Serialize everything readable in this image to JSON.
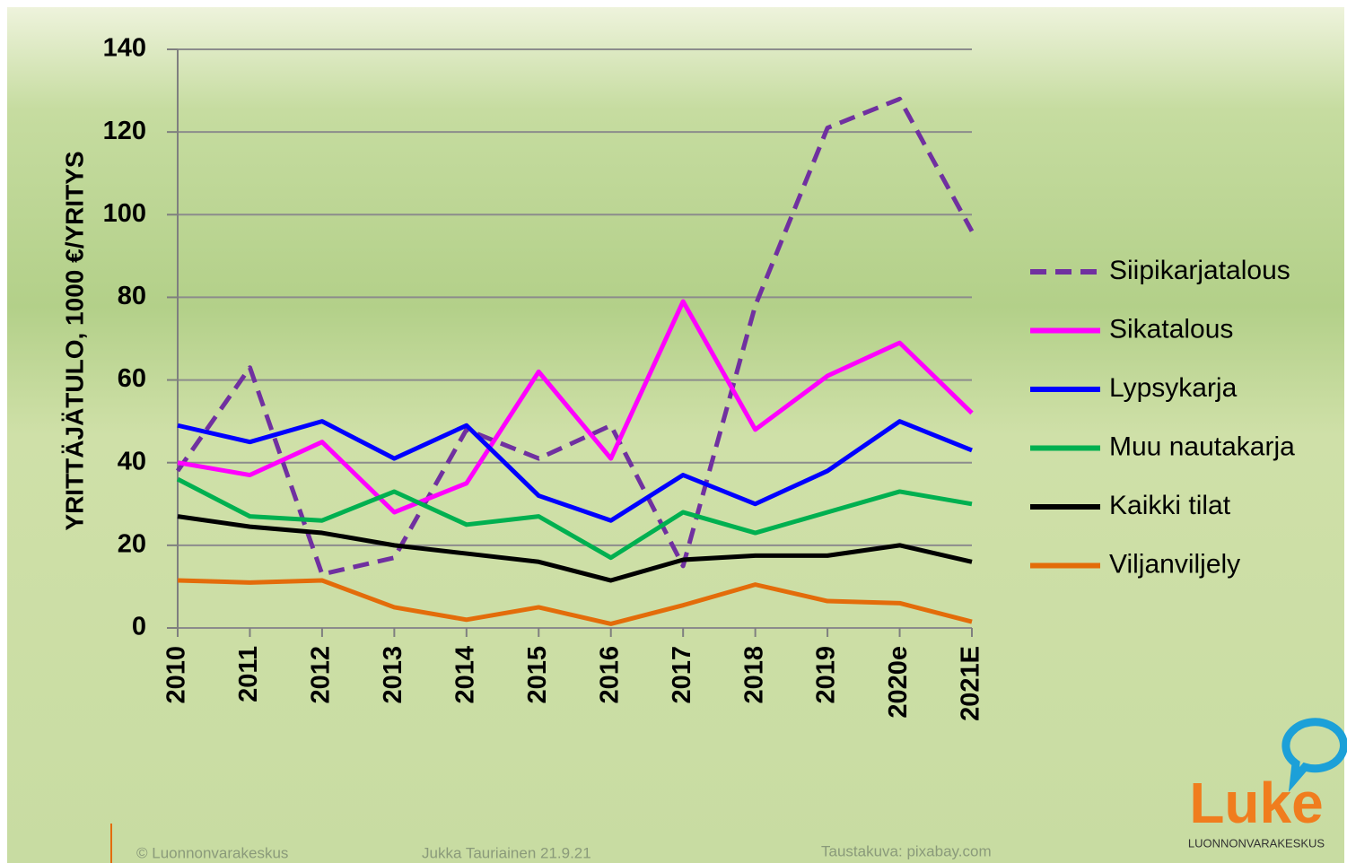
{
  "chart_data": {
    "type": "line",
    "y_label": "YRITTÄJÄTULO, 1000 €/YRITYS",
    "categories": [
      "2010",
      "2011",
      "2012",
      "2013",
      "2014",
      "2015",
      "2016",
      "2017",
      "2018",
      "2019",
      "2020e",
      "2021E"
    ],
    "series": [
      {
        "name": "Siipikarjatalous",
        "color": "#7030a0",
        "line_style": "dashed",
        "values": [
          38,
          63,
          13,
          17,
          48,
          41,
          49,
          15,
          78,
          121,
          128,
          96
        ]
      },
      {
        "name": "Sikatalous",
        "color": "#ff00ff",
        "line_style": "solid",
        "values": [
          40,
          37,
          45,
          28,
          35,
          62,
          41,
          79,
          48,
          61,
          69,
          52
        ]
      },
      {
        "name": "Lypsykarja",
        "color": "#0000ff",
        "line_style": "solid",
        "values": [
          49,
          45,
          50,
          41,
          49,
          32,
          26,
          37,
          30,
          38,
          50,
          43
        ]
      },
      {
        "name": "Muu nautakarja",
        "color": "#00b050",
        "line_style": "solid",
        "values": [
          36,
          27,
          26,
          33,
          25,
          27,
          17,
          28,
          23,
          28,
          33,
          30
        ]
      },
      {
        "name": "Kaikki tilat",
        "color": "#000000",
        "line_style": "solid",
        "values": [
          27,
          24.5,
          23,
          20,
          18,
          16,
          11.5,
          16.5,
          17.5,
          17.5,
          20,
          16
        ]
      },
      {
        "name": "Viljanviljely",
        "color": "#e36c0a",
        "line_style": "solid",
        "values": [
          11.5,
          11,
          11.5,
          5,
          2,
          5,
          1,
          5.5,
          10.5,
          6.5,
          6,
          1.5
        ]
      }
    ],
    "ylim": [
      0,
      140
    ],
    "yticks": [
      0,
      20,
      40,
      60,
      80,
      100,
      120,
      140
    ],
    "grid": true,
    "legend": "right"
  },
  "footer": {
    "copyright": "© Luonnonvarakeskus",
    "author": "Jukka Tauriainen 21.9.21",
    "credit": "Taustakuva: pixabay.com",
    "logo": "Luke",
    "logo_sub": "LUONNONVARAKESKUS"
  }
}
